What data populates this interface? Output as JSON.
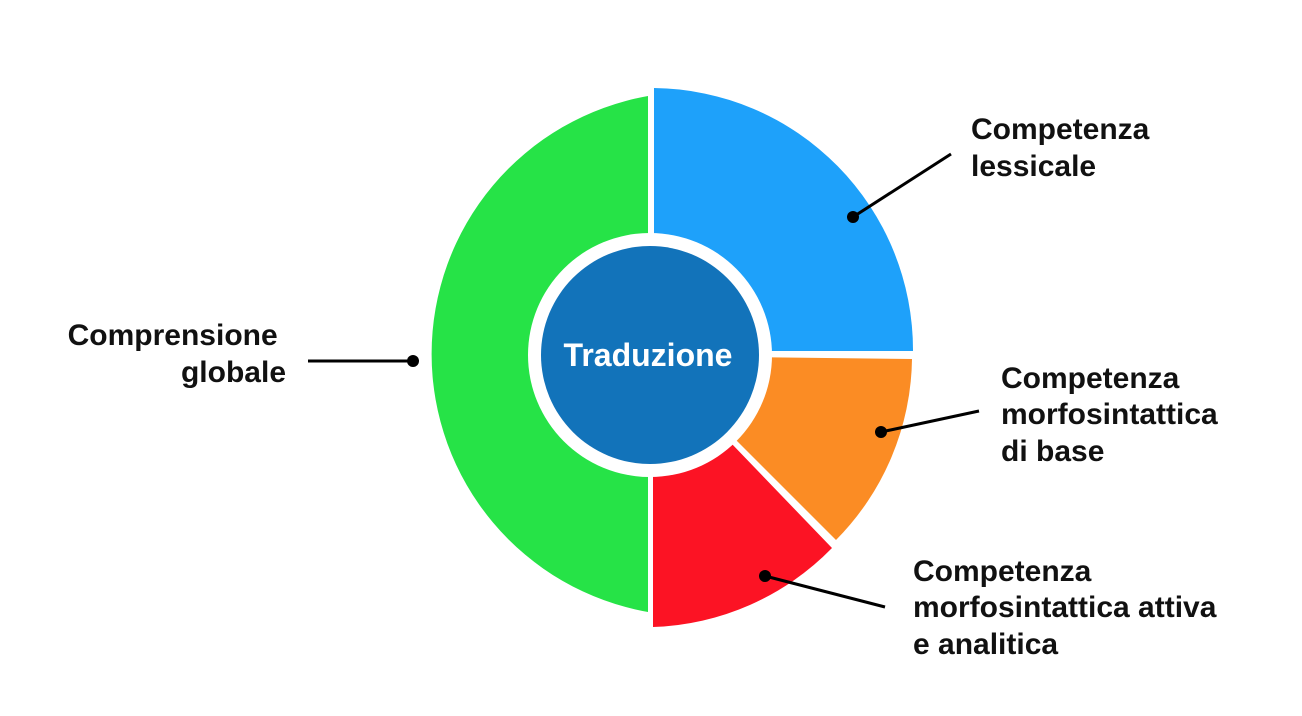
{
  "center": {
    "label": "Traduzione",
    "color": "#1273BA"
  },
  "segments": [
    {
      "id": "comprensione-globale",
      "lines": [
        "Comprensione",
        "globale"
      ],
      "color": "#26E347",
      "share": 0.5
    },
    {
      "id": "competenza-lessicale",
      "lines": [
        "Competenza",
        "lessicale"
      ],
      "color": "#1EA1FA",
      "share": 0.25
    },
    {
      "id": "competenza-morfosintattica-base",
      "lines": [
        "Competenza",
        "morfosintattica",
        "di base"
      ],
      "color": "#FB8C24",
      "share": 0.125
    },
    {
      "id": "competenza-morfosintattica-attiva",
      "lines": [
        "Competenza",
        "morfosintattica attiva",
        "e analitica"
      ],
      "color": "#FC1324",
      "share": 0.125
    }
  ]
}
